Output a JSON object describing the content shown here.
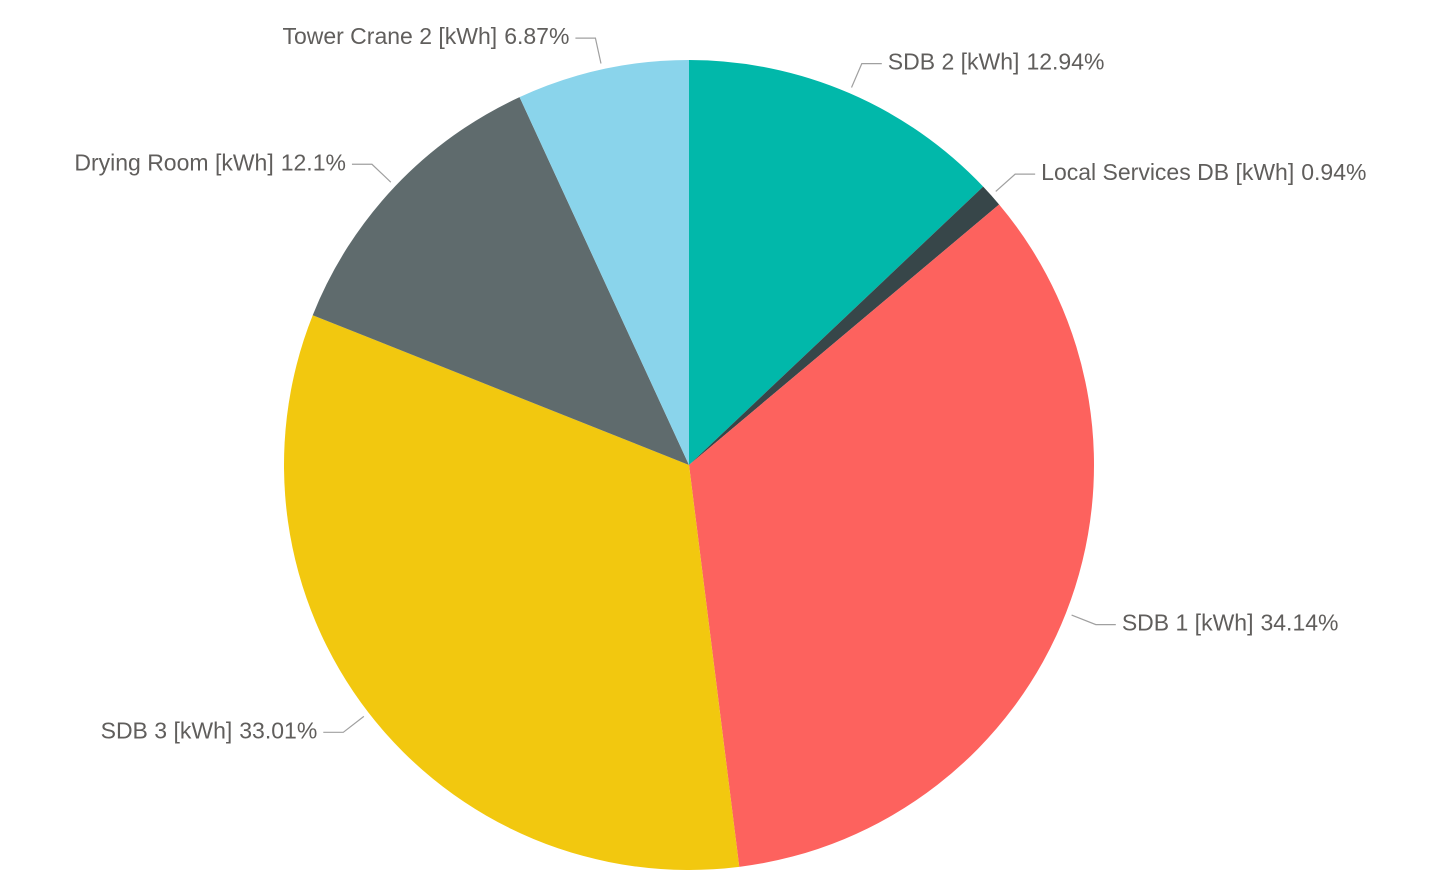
{
  "chart_data": {
    "type": "pie",
    "categories": [
      "SDB 2 [kWh]",
      "Local Services DB [kWh]",
      "SDB 1 [kWh]",
      "SDB 3 [kWh]",
      "Drying Room [kWh]",
      "Tower Crane 2 [kWh]"
    ],
    "values": [
      12.94,
      0.94,
      34.14,
      33.01,
      12.1,
      6.87
    ],
    "value_labels": [
      "12.94%",
      "0.94%",
      "34.14%",
      "33.01%",
      "12.1%",
      "6.87%"
    ],
    "colors": [
      "#01b8aa",
      "#374649",
      "#fd625e",
      "#f2c80f",
      "#5f6b6d",
      "#8ad4eb"
    ]
  }
}
